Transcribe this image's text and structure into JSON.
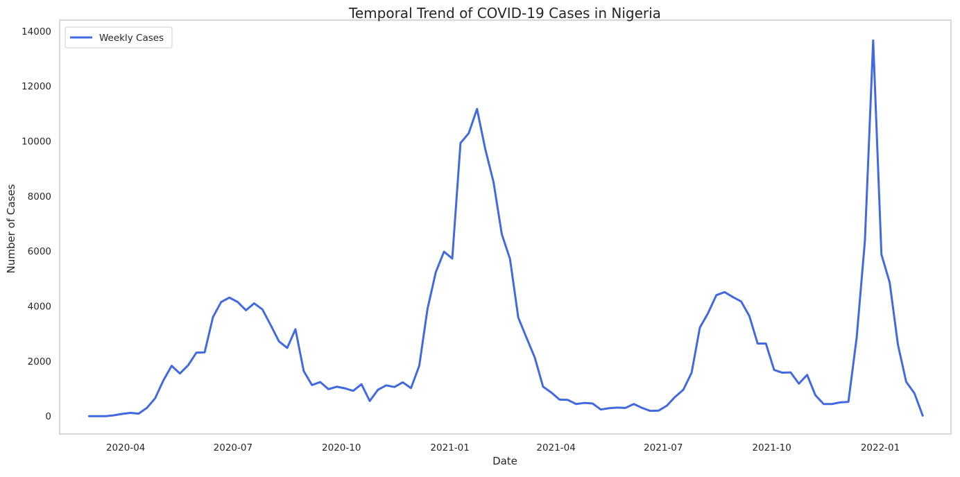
{
  "chart_data": {
    "type": "line",
    "title": "Temporal Trend of COVID-19 Cases in Nigeria",
    "xlabel": "Date",
    "ylabel": "Number of Cases",
    "xlim": [
      "2020-02-05",
      "2022-03-02"
    ],
    "ylim": [
      -650,
      14400
    ],
    "grid": false,
    "legend_position": "top-left",
    "x_ticks": [
      "2020-04",
      "2020-07",
      "2020-10",
      "2021-01",
      "2021-04",
      "2021-07",
      "2021-10",
      "2022-01"
    ],
    "y_ticks": [
      0,
      2000,
      4000,
      6000,
      8000,
      10000,
      12000,
      14000
    ],
    "colors": {
      "line": "#4169e1",
      "axes_edge": "#cccccc",
      "text": "#262626"
    },
    "series": [
      {
        "name": "Weekly Cases",
        "x": [
          "2020-03-01",
          "2020-03-08",
          "2020-03-15",
          "2020-03-22",
          "2020-03-29",
          "2020-04-05",
          "2020-04-12",
          "2020-04-19",
          "2020-04-26",
          "2020-05-03",
          "2020-05-10",
          "2020-05-17",
          "2020-05-24",
          "2020-05-31",
          "2020-06-07",
          "2020-06-14",
          "2020-06-21",
          "2020-06-28",
          "2020-07-05",
          "2020-07-12",
          "2020-07-19",
          "2020-07-26",
          "2020-08-02",
          "2020-08-09",
          "2020-08-16",
          "2020-08-23",
          "2020-08-30",
          "2020-09-06",
          "2020-09-13",
          "2020-09-20",
          "2020-09-27",
          "2020-10-04",
          "2020-10-11",
          "2020-10-18",
          "2020-10-25",
          "2020-11-01",
          "2020-11-08",
          "2020-11-15",
          "2020-11-22",
          "2020-11-29",
          "2020-12-06",
          "2020-12-13",
          "2020-12-20",
          "2020-12-27",
          "2021-01-03",
          "2021-01-10",
          "2021-01-17",
          "2021-01-24",
          "2021-01-31",
          "2021-02-07",
          "2021-02-14",
          "2021-02-21",
          "2021-02-28",
          "2021-03-07",
          "2021-03-14",
          "2021-03-21",
          "2021-03-28",
          "2021-04-04",
          "2021-04-11",
          "2021-04-18",
          "2021-04-25",
          "2021-05-02",
          "2021-05-09",
          "2021-05-16",
          "2021-05-23",
          "2021-05-30",
          "2021-06-06",
          "2021-06-13",
          "2021-06-20",
          "2021-06-27",
          "2021-07-04",
          "2021-07-11",
          "2021-07-18",
          "2021-07-25",
          "2021-08-01",
          "2021-08-08",
          "2021-08-15",
          "2021-08-22",
          "2021-08-29",
          "2021-09-05",
          "2021-09-12",
          "2021-09-19",
          "2021-09-26",
          "2021-10-03",
          "2021-10-10",
          "2021-10-17",
          "2021-10-24",
          "2021-10-31",
          "2021-11-07",
          "2021-11-14",
          "2021-11-21",
          "2021-11-28",
          "2021-12-05",
          "2021-12-12",
          "2021-12-19",
          "2021-12-26",
          "2022-01-02",
          "2022-01-09",
          "2022-01-16",
          "2022-01-23",
          "2022-01-30",
          "2022-02-06"
        ],
        "values": [
          0,
          0,
          0,
          30,
          80,
          120,
          90,
          300,
          650,
          1300,
          1830,
          1550,
          1850,
          2310,
          2320,
          3600,
          4150,
          4310,
          4150,
          3850,
          4100,
          3880,
          3310,
          2720,
          2480,
          3160,
          1640,
          1130,
          1240,
          980,
          1070,
          1010,
          920,
          1160,
          550,
          960,
          1120,
          1060,
          1230,
          1020,
          1830,
          3900,
          5230,
          5980,
          5730,
          9930,
          10290,
          11170,
          9710,
          8510,
          6620,
          5710,
          3580,
          2850,
          2130,
          1070,
          860,
          600,
          590,
          440,
          480,
          460,
          240,
          290,
          310,
          300,
          440,
          300,
          190,
          200,
          380,
          700,
          960,
          1580,
          3220,
          3750,
          4400,
          4510,
          4330,
          4170,
          3640,
          2640,
          2640,
          1680,
          1580,
          1590,
          1180,
          1500,
          760,
          440,
          440,
          500,
          520,
          2850,
          6380,
          13660,
          5880,
          4860,
          2600,
          1250,
          830,
          20
        ]
      }
    ]
  }
}
